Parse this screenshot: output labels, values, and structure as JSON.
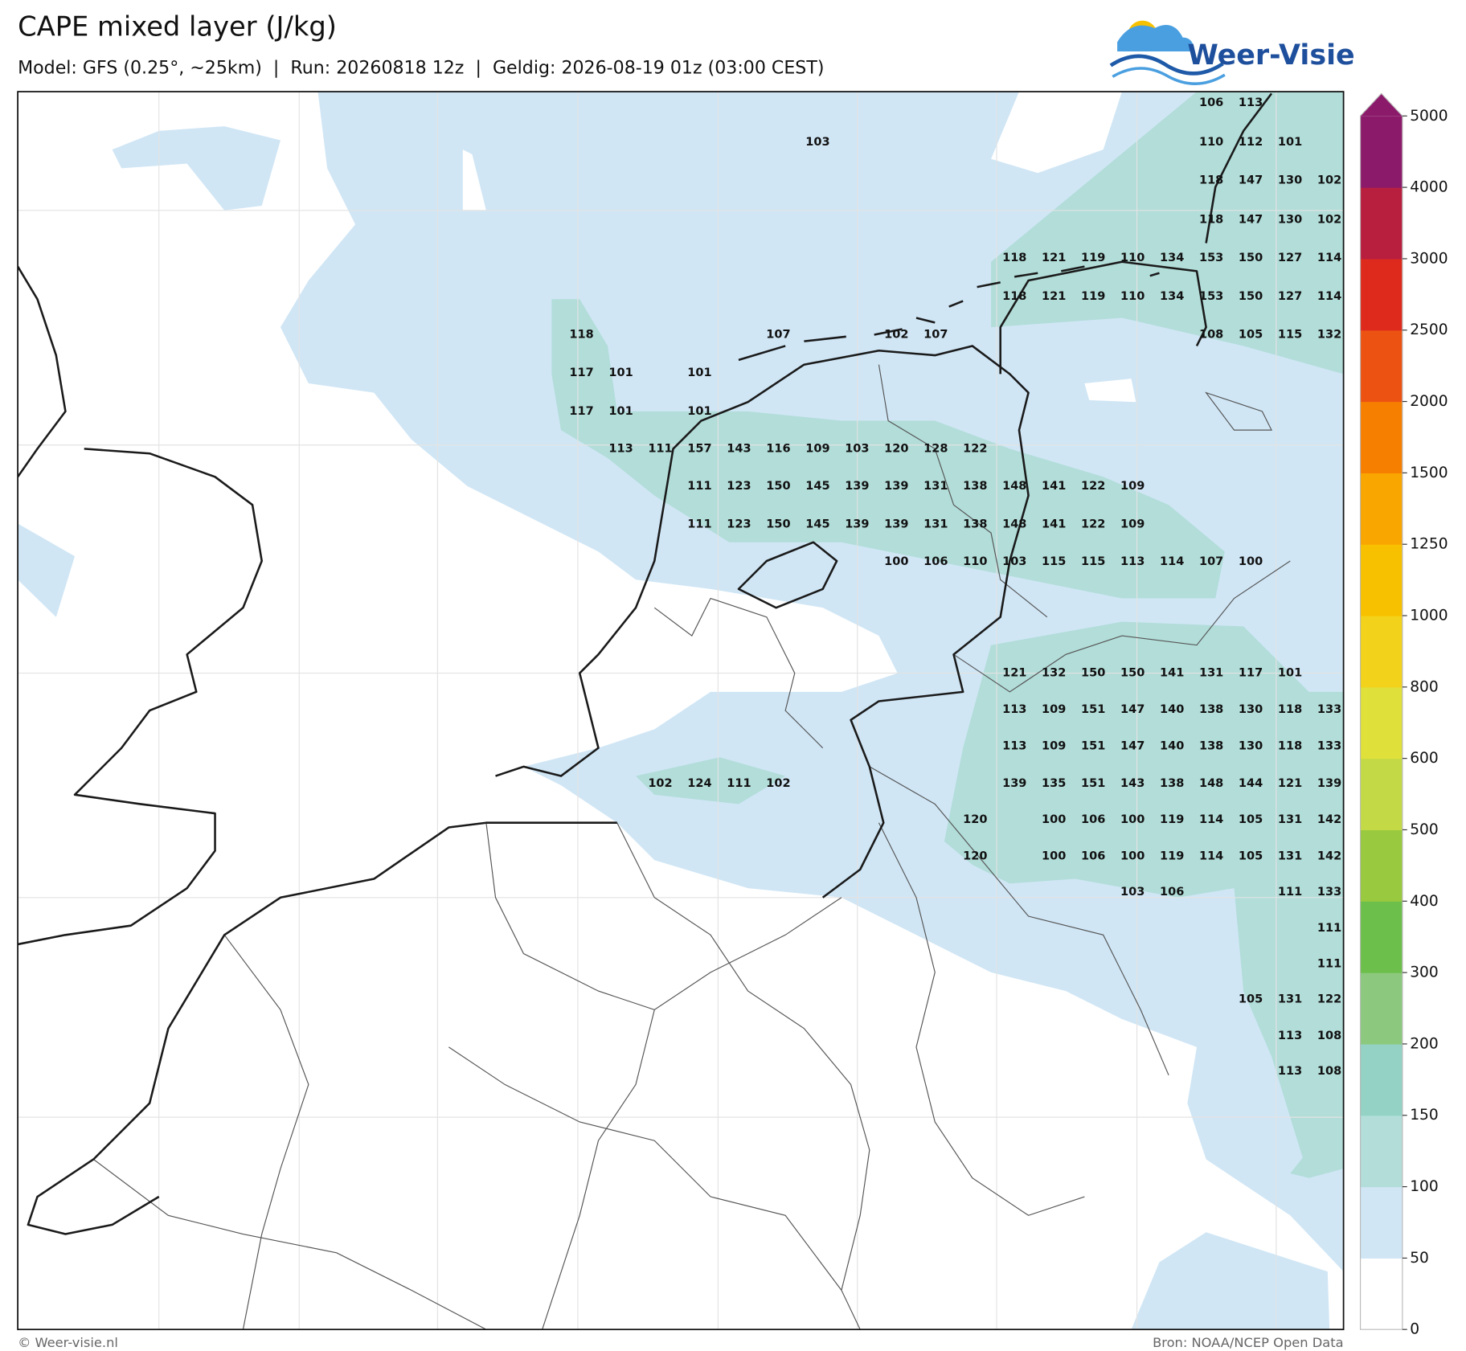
{
  "header": {
    "title": "CAPE mixed layer (J/kg)",
    "subtitle": "Model: GFS (0.25°, ~25km)  |  Run: 20260818 12z  |  Geldig: 2026-08-19 01z (03:00 CEST)",
    "logo": "Weer-Visie"
  },
  "map": {
    "labels": [
      [
        null,
        null,
        null,
        null,
        null,
        null,
        null,
        null,
        null,
        null,
        null,
        null,
        null,
        null,
        null,
        null,
        106,
        113,
        null,
        null
      ],
      [
        null,
        null,
        null,
        null,
        null,
        null,
        103,
        null,
        null,
        null,
        null,
        null,
        null,
        null,
        null,
        null,
        110,
        112,
        101,
        null
      ],
      [
        null,
        null,
        null,
        null,
        null,
        null,
        null,
        null,
        null,
        null,
        null,
        null,
        null,
        null,
        null,
        null,
        118,
        147,
        130,
        102
      ],
      [
        null,
        null,
        null,
        null,
        null,
        null,
        null,
        null,
        null,
        null,
        null,
        null,
        null,
        null,
        null,
        null,
        118,
        147,
        130,
        102
      ],
      [
        null,
        null,
        null,
        null,
        null,
        null,
        null,
        null,
        null,
        null,
        null,
        118,
        121,
        119,
        110,
        134,
        153,
        150,
        127,
        114
      ],
      [
        null,
        null,
        null,
        null,
        null,
        null,
        null,
        null,
        null,
        null,
        null,
        118,
        121,
        119,
        110,
        134,
        153,
        150,
        127,
        114
      ],
      [
        118,
        null,
        null,
        null,
        null,
        107,
        null,
        null,
        102,
        107,
        null,
        null,
        null,
        null,
        null,
        null,
        108,
        105,
        115,
        132
      ],
      [
        117,
        101,
        null,
        101,
        null,
        null,
        null,
        null,
        null,
        null,
        null,
        null,
        null,
        null,
        null,
        null,
        null,
        null,
        null,
        null
      ],
      [
        117,
        101,
        null,
        101,
        null,
        null,
        null,
        null,
        null,
        null,
        null,
        null,
        null,
        null,
        null,
        null,
        null,
        null,
        null,
        null
      ],
      [
        null,
        113,
        111,
        157,
        143,
        116,
        109,
        103,
        120,
        128,
        122,
        null,
        null,
        null,
        null,
        null,
        null,
        null,
        null,
        null
      ],
      [
        null,
        null,
        null,
        111,
        123,
        150,
        145,
        139,
        139,
        131,
        138,
        148,
        141,
        122,
        109,
        null,
        null,
        null,
        null,
        null
      ],
      [
        null,
        null,
        null,
        111,
        123,
        150,
        145,
        139,
        139,
        131,
        138,
        148,
        141,
        122,
        109,
        null,
        null,
        null,
        null,
        null
      ],
      [
        null,
        null,
        null,
        null,
        null,
        null,
        null,
        null,
        100,
        106,
        110,
        103,
        115,
        115,
        113,
        114,
        107,
        100,
        null,
        null
      ],
      [
        null,
        null,
        null,
        null,
        null,
        null,
        null,
        null,
        null,
        null,
        null,
        null,
        null,
        null,
        null,
        null,
        null,
        null,
        null,
        null
      ],
      [
        null,
        null,
        null,
        null,
        null,
        null,
        null,
        null,
        null,
        null,
        null,
        null,
        null,
        null,
        null,
        null,
        null,
        null,
        null,
        null
      ],
      [
        null,
        null,
        null,
        null,
        null,
        null,
        null,
        null,
        null,
        null,
        null,
        121,
        132,
        150,
        150,
        141,
        131,
        117,
        101,
        null
      ],
      [
        null,
        null,
        null,
        null,
        null,
        null,
        null,
        null,
        null,
        null,
        null,
        113,
        109,
        151,
        147,
        140,
        138,
        130,
        118,
        133
      ],
      [
        null,
        null,
        null,
        null,
        null,
        null,
        null,
        null,
        null,
        null,
        null,
        113,
        109,
        151,
        147,
        140,
        138,
        130,
        118,
        133
      ],
      [
        null,
        null,
        102,
        124,
        111,
        102,
        null,
        null,
        null,
        null,
        null,
        139,
        135,
        151,
        143,
        138,
        148,
        144,
        121,
        139
      ],
      [
        null,
        null,
        null,
        null,
        null,
        null,
        null,
        null,
        null,
        null,
        120,
        null,
        100,
        106,
        100,
        119,
        114,
        105,
        131,
        142
      ],
      [
        null,
        null,
        null,
        null,
        null,
        null,
        null,
        null,
        null,
        null,
        120,
        null,
        100,
        106,
        100,
        119,
        114,
        105,
        131,
        142
      ],
      [
        null,
        null,
        null,
        null,
        null,
        null,
        null,
        null,
        null,
        null,
        null,
        null,
        null,
        null,
        103,
        106,
        null,
        null,
        111,
        133
      ],
      [
        null,
        null,
        null,
        null,
        null,
        null,
        null,
        null,
        null,
        null,
        null,
        null,
        null,
        null,
        null,
        null,
        null,
        null,
        null,
        111
      ],
      [
        null,
        null,
        null,
        null,
        null,
        null,
        null,
        null,
        null,
        null,
        null,
        null,
        null,
        null,
        null,
        null,
        null,
        null,
        null,
        111
      ],
      [
        null,
        null,
        null,
        null,
        null,
        null,
        null,
        null,
        null,
        null,
        null,
        null,
        null,
        null,
        null,
        null,
        null,
        105,
        131,
        122
      ],
      [
        null,
        null,
        null,
        null,
        null,
        null,
        null,
        null,
        null,
        null,
        null,
        null,
        null,
        null,
        null,
        null,
        null,
        null,
        113,
        108
      ],
      [
        null,
        null,
        null,
        null,
        null,
        null,
        null,
        null,
        null,
        null,
        null,
        null,
        null,
        null,
        null,
        null,
        null,
        null,
        113,
        108
      ]
    ]
  },
  "colorbar": {
    "levels": [
      0,
      50,
      100,
      150,
      200,
      300,
      400,
      500,
      600,
      800,
      1000,
      1250,
      1500,
      2000,
      2500,
      3000,
      4000,
      5000
    ],
    "colors": [
      "#ffffff",
      "#d0e6f5",
      "#b2ddd9",
      "#93d2c4",
      "#8cc97e",
      "#6cbf4a",
      "#98c93e",
      "#c3da46",
      "#dfe03a",
      "#f2d21a",
      "#f8c100",
      "#f9a600",
      "#f77f00",
      "#ec5313",
      "#dd2a1c",
      "#b81f3f",
      "#8c1a6b"
    ]
  },
  "footer": {
    "left": "© Weer-visie.nl",
    "right": "Bron: NOAA/NCEP Open Data"
  }
}
